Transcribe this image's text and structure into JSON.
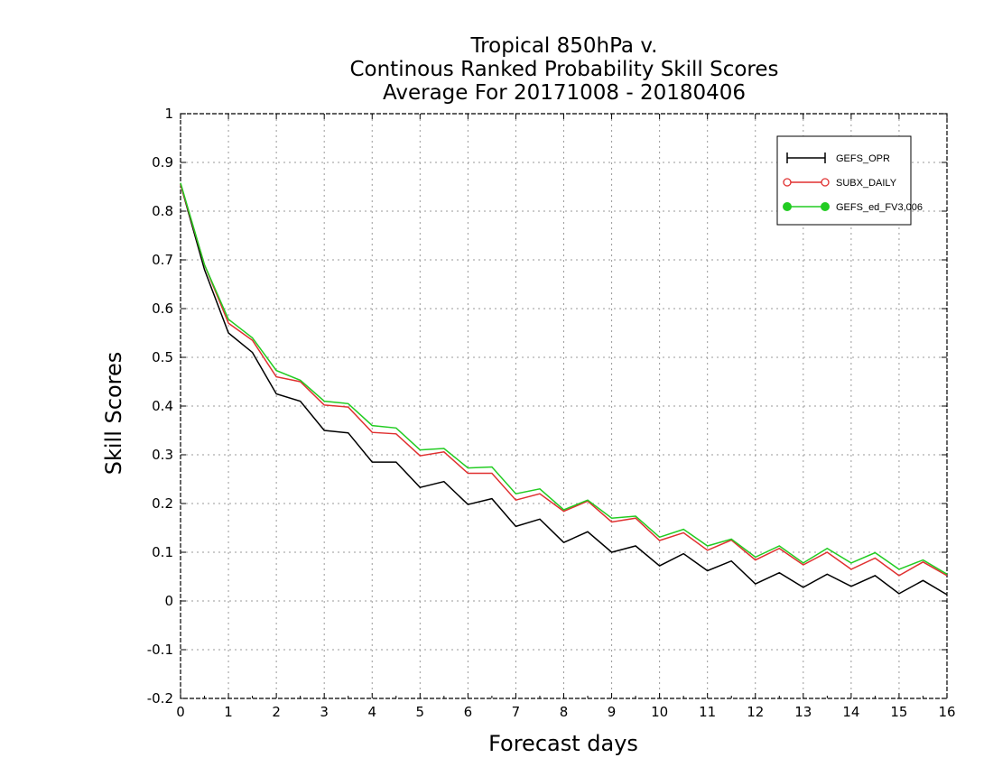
{
  "chart_data": {
    "type": "line",
    "title_lines": [
      "Tropical 850hPa v.",
      "Continous Ranked Probability Skill Scores",
      "Average For 20171008 - 20180406"
    ],
    "xlabel": "Forecast days",
    "ylabel": "Skill Scores",
    "xlim": [
      0,
      16
    ],
    "ylim": [
      -0.2,
      1
    ],
    "x_ticks": [
      "0",
      "1",
      "2",
      "3",
      "4",
      "5",
      "6",
      "7",
      "8",
      "9",
      "10",
      "11",
      "12",
      "13",
      "14",
      "15",
      "16"
    ],
    "y_ticks": [
      "-0.2",
      "-0.1",
      "0",
      "0.1",
      "0.2",
      "0.3",
      "0.4",
      "0.5",
      "0.6",
      "0.7",
      "0.8",
      "0.9",
      "1"
    ],
    "grid": true,
    "legend_position": "top-right",
    "x": [
      0,
      0.5,
      1,
      1.5,
      2,
      2.5,
      3,
      3.5,
      4,
      4.5,
      5,
      5.5,
      6,
      6.5,
      7,
      7.5,
      8,
      8.5,
      9,
      9.5,
      10,
      10.5,
      11,
      11.5,
      12,
      12.5,
      13,
      13.5,
      14,
      14.5,
      15,
      15.5,
      16
    ],
    "series": [
      {
        "name": "GEFS_OPR",
        "color": "#000000",
        "marker": "plus",
        "values": [
          0.855,
          0.68,
          0.55,
          0.51,
          0.425,
          0.41,
          0.35,
          0.345,
          0.285,
          0.285,
          0.233,
          0.245,
          0.198,
          0.21,
          0.153,
          0.168,
          0.12,
          0.142,
          0.1,
          0.113,
          0.072,
          0.097,
          0.062,
          0.082,
          0.035,
          0.058,
          0.028,
          0.055,
          0.03,
          0.052,
          0.015,
          0.042,
          0.013
        ]
      },
      {
        "name": "SUBX_DAILY",
        "color": "#e03030",
        "marker": "open-circle",
        "values": [
          0.855,
          0.69,
          0.57,
          0.535,
          0.46,
          0.45,
          0.402,
          0.398,
          0.346,
          0.343,
          0.298,
          0.306,
          0.262,
          0.262,
          0.207,
          0.22,
          0.184,
          0.205,
          0.162,
          0.17,
          0.124,
          0.14,
          0.104,
          0.125,
          0.084,
          0.108,
          0.074,
          0.1,
          0.065,
          0.088,
          0.052,
          0.08,
          0.052
        ]
      },
      {
        "name": "GEFS_ed_FV3,006",
        "color": "#22cc22",
        "marker": "filled-circle",
        "values": [
          0.858,
          0.69,
          0.578,
          0.54,
          0.473,
          0.453,
          0.41,
          0.405,
          0.36,
          0.355,
          0.31,
          0.313,
          0.273,
          0.275,
          0.22,
          0.23,
          0.187,
          0.207,
          0.17,
          0.174,
          0.131,
          0.147,
          0.113,
          0.127,
          0.09,
          0.113,
          0.078,
          0.108,
          0.078,
          0.099,
          0.065,
          0.084,
          0.055
        ]
      }
    ]
  }
}
